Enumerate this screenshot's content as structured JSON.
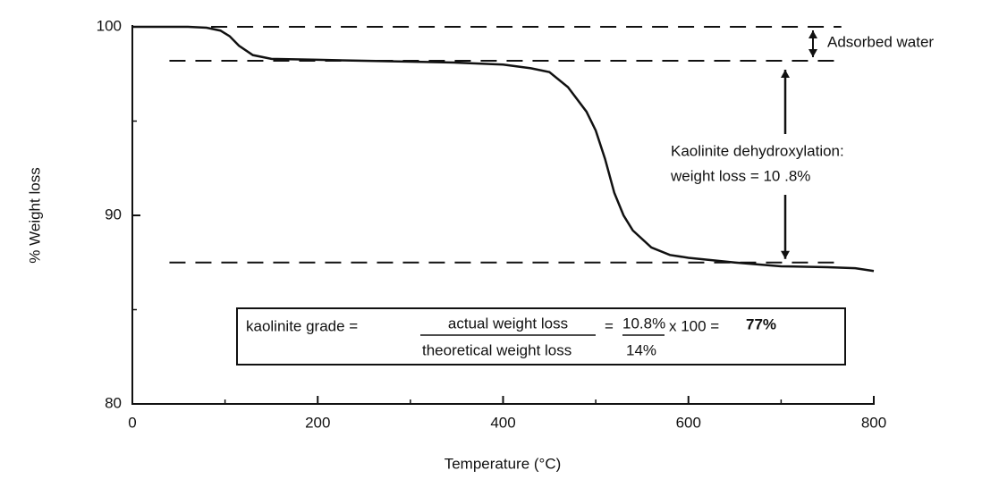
{
  "chart_data": {
    "type": "line",
    "y_label": "% Weight loss",
    "x_label": "Temperature (°C)",
    "x": [
      0,
      20,
      60,
      80,
      95,
      105,
      115,
      130,
      150,
      200,
      300,
      350,
      400,
      430,
      450,
      470,
      490,
      500,
      510,
      520,
      530,
      540,
      560,
      580,
      600,
      650,
      700,
      750,
      780,
      800
    ],
    "values": [
      100,
      100,
      100,
      99.95,
      99.8,
      99.5,
      99.0,
      98.5,
      98.3,
      98.25,
      98.15,
      98.1,
      98.0,
      97.8,
      97.6,
      96.8,
      95.5,
      94.5,
      93,
      91.2,
      90,
      89.2,
      88.3,
      87.9,
      87.75,
      87.5,
      87.3,
      87.25,
      87.2,
      87.05
    ],
    "color": "#111111",
    "xlim": [
      0,
      800
    ],
    "xticks": [
      0,
      200,
      400,
      600,
      800
    ],
    "xminorticks": [
      100,
      300,
      500,
      700
    ],
    "ylim": [
      80,
      100
    ],
    "yticks": [
      80,
      90,
      100
    ],
    "yminorticks": [
      85,
      95
    ],
    "dashed_lines": [
      {
        "y": 100,
        "x": [
          85,
          765
        ]
      },
      {
        "y": 98.2,
        "x": [
          40,
          765
        ]
      },
      {
        "y": 87.5,
        "x": [
          40,
          765
        ]
      }
    ],
    "annotations": {
      "adsorbed": "Adsorbed water",
      "dehydrox_1": "Kaolinite dehydroxylation:",
      "dehydrox_2": "weight loss = 10 .8%"
    },
    "formula": {
      "lhs": "kaolinite grade =",
      "numerator": "actual weight loss",
      "denominator": "theoretical weight loss",
      "eq": "=",
      "num_value": "10.8%",
      "den_value": "14%",
      "times": "x 100 =",
      "result": "77%"
    }
  }
}
